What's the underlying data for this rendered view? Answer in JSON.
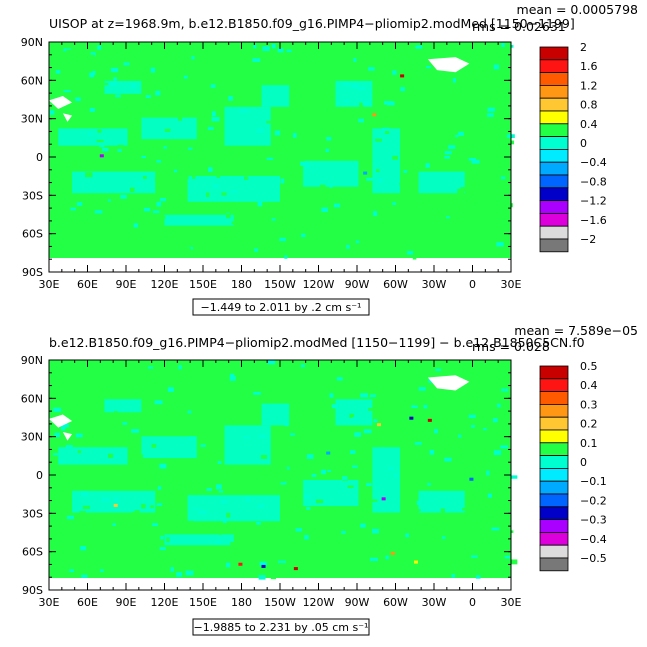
{
  "colors": {
    "background_ocean": "#22ff44",
    "light_cyan": "#00ffd0",
    "land_white": "#ffffff",
    "frame": "#000000"
  },
  "chart_data": [
    {
      "type": "heatmap",
      "title": "UISOP at z=1968.9m, b.e12.B1850.f09_g16.PIMP4−pliomip2.modMed [1150−1199]",
      "stat_mean": "mean = 0.0005798",
      "stat_rms": "rms = 0.02631",
      "range_label": "−1.449 to 2.011 by .2 cm s⁻¹",
      "xlabel": "",
      "ylabel": "",
      "x_ticks": [
        "30E",
        "60E",
        "90E",
        "120E",
        "150E",
        "180",
        "150W",
        "120W",
        "90W",
        "60W",
        "30W",
        "0",
        "30E"
      ],
      "y_ticks": [
        "90N",
        "60N",
        "30N",
        "0",
        "30S",
        "60S",
        "90S"
      ],
      "lon_range": [
        30,
        390
      ],
      "lat_range": [
        -90,
        90
      ],
      "colorbar": {
        "labels": [
          "2",
          "1.6",
          "1.2",
          "0.8",
          "0.4",
          "0",
          "−0.4",
          "−0.8",
          "−1.2",
          "−1.6",
          "−2"
        ],
        "levels": [
          2,
          1.6,
          1.2,
          0.8,
          0.4,
          0,
          -0.4,
          -0.8,
          -1.2,
          -1.6,
          -2
        ],
        "colors": [
          "#c80000",
          "#ff1414",
          "#ff5a00",
          "#ff9614",
          "#ffc832",
          "#ffff00",
          "#22ff44",
          "#00ffd0",
          "#00ebff",
          "#00aaff",
          "#0064ff",
          "#0000c8",
          "#aa00ff",
          "#dd00dd",
          "#dcdcdc",
          "#787878"
        ]
      }
    },
    {
      "type": "heatmap",
      "title": "b.e12.B1850.f09_g16.PIMP4−pliomip2.modMed [1150−1199] − b.e12.B1850C5CN.f0",
      "stat_mean": "mean = 7.589e−05",
      "stat_rms": "rms = 0.028",
      "range_label": "−1.9885 to 2.231 by .05 cm s⁻¹",
      "xlabel": "",
      "ylabel": "",
      "x_ticks": [
        "30E",
        "60E",
        "90E",
        "120E",
        "150E",
        "180",
        "150W",
        "120W",
        "90W",
        "60W",
        "30W",
        "0",
        "30E"
      ],
      "y_ticks": [
        "90N",
        "60N",
        "30N",
        "0",
        "30S",
        "60S",
        "90S"
      ],
      "lon_range": [
        30,
        390
      ],
      "lat_range": [
        -90,
        90
      ],
      "colorbar": {
        "labels": [
          "0.5",
          "0.4",
          "0.3",
          "0.2",
          "0.1",
          "0",
          "−0.1",
          "−0.2",
          "−0.3",
          "−0.4",
          "−0.5"
        ],
        "levels": [
          0.5,
          0.4,
          0.3,
          0.2,
          0.1,
          0,
          -0.1,
          -0.2,
          -0.3,
          -0.4,
          -0.5
        ],
        "colors": [
          "#c80000",
          "#ff1414",
          "#ff5a00",
          "#ff9614",
          "#ffc832",
          "#ffff00",
          "#22ff44",
          "#00ffd0",
          "#00ebff",
          "#00aaff",
          "#0064ff",
          "#0000c8",
          "#aa00ff",
          "#dd00dd",
          "#dcdcdc",
          "#787878"
        ]
      }
    }
  ]
}
